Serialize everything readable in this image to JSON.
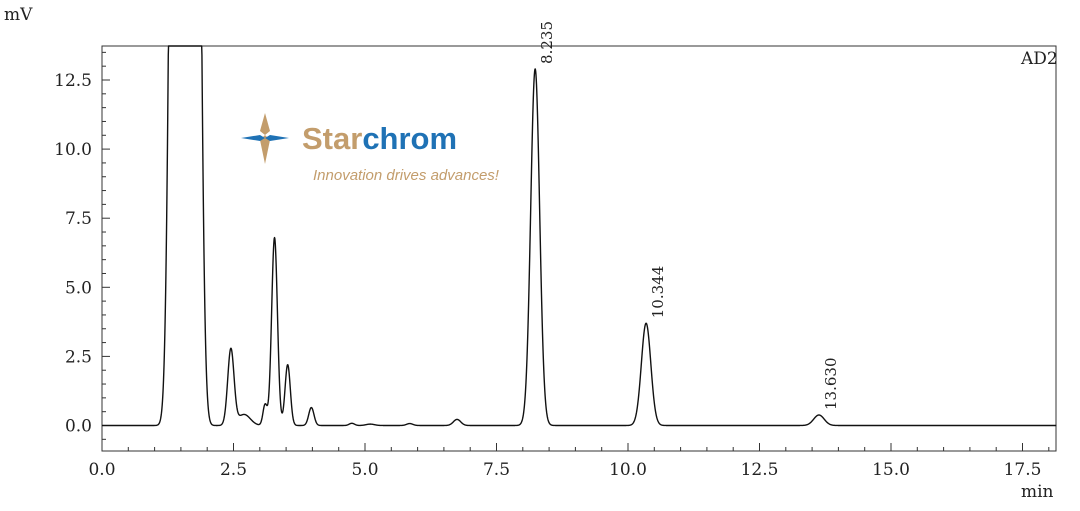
{
  "chart_data": {
    "type": "line",
    "y_unit_label": "mV",
    "x_unit_label": "min",
    "detector_label": "AD2",
    "xlim": [
      0,
      18.15
    ],
    "ylim": [
      -0.9,
      13.7
    ],
    "x_ticks": [
      0,
      2.5,
      5,
      7.5,
      10,
      12.5,
      15,
      17.5
    ],
    "x_tick_labels": [
      "0.0",
      "2.5",
      "5.0",
      "7.5",
      "10.0",
      "12.5",
      "15.0",
      "17.5"
    ],
    "y_ticks": [
      0,
      2.5,
      5,
      7.5,
      10,
      12.5
    ],
    "y_tick_labels": [
      "0.0",
      "2.5",
      "5.0",
      "7.5",
      "10.0",
      "12.5"
    ],
    "baseline": 0,
    "peaks": [
      {
        "rt": 1.58,
        "height": 75,
        "width": 0.27,
        "shape": "flat"
      },
      {
        "rt": 2.45,
        "height": 2.75,
        "width": 0.06
      },
      {
        "rt": 2.7,
        "height": 0.4,
        "width": 0.12
      },
      {
        "rt": 3.1,
        "height": 0.75,
        "width": 0.04
      },
      {
        "rt": 3.28,
        "height": 6.8,
        "width": 0.055
      },
      {
        "rt": 3.53,
        "height": 2.2,
        "width": 0.05
      },
      {
        "rt": 3.98,
        "height": 0.65,
        "width": 0.05
      },
      {
        "rt": 4.75,
        "height": 0.08,
        "width": 0.05
      },
      {
        "rt": 5.1,
        "height": 0.05,
        "width": 0.08
      },
      {
        "rt": 5.85,
        "height": 0.07,
        "width": 0.06
      },
      {
        "rt": 6.75,
        "height": 0.22,
        "width": 0.07
      },
      {
        "rt": 8.235,
        "height": 12.9,
        "width": 0.085
      },
      {
        "rt": 10.344,
        "height": 3.7,
        "width": 0.09
      },
      {
        "rt": 13.63,
        "height": 0.38,
        "width": 0.1
      }
    ],
    "labeled_peaks": [
      {
        "label": "8.235",
        "rt": 8.235,
        "height": 12.9
      },
      {
        "label": "10.344",
        "rt": 10.344,
        "height": 3.7
      },
      {
        "label": "13.630",
        "rt": 13.63,
        "height": 0.38
      }
    ]
  },
  "logo": {
    "name_part1": "Star",
    "name_part2": "chrom",
    "tagline": "Innovation drives advances!",
    "colors": {
      "gold": "#c39d6c",
      "blue": "#1f72b5"
    }
  }
}
